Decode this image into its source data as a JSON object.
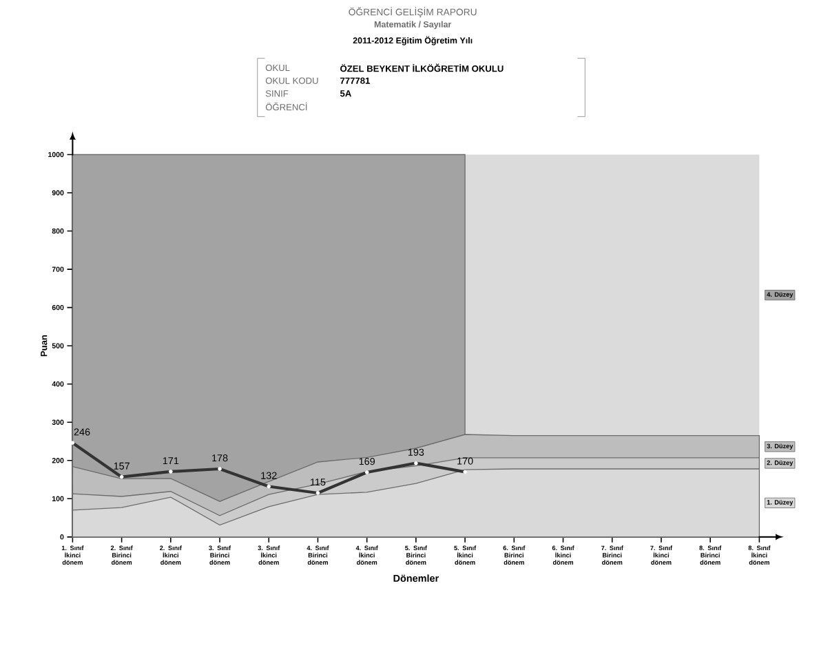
{
  "chart_data": {
    "type": "line",
    "title": "ÖĞRENCİ GELİŞİM RAPORU",
    "subtitle": "Matematik / Sayılar",
    "xlabel": "Dönemler",
    "ylabel": "Puan",
    "annotations": [
      "2011-2012 Eğitim Öğretim Yılı",
      "OKUL",
      "ÖZEL BEYKENT İLKÖĞRETİM OKULU",
      "OKUL KODU",
      "777781",
      "SINIF",
      "5A",
      "ÖĞRENCİ"
    ],
    "categories": [
      "1. Sınıf İkinci dönem",
      "2. Sınıf Birinci dönem",
      "2. Sınıf İkinci dönem",
      "3. Sınıf Birinci dönem",
      "3. Sınıf İkinci dönem",
      "4. Sınıf Birinci dönem",
      "4. Sınıf İkinci dönem",
      "5. Sınıf Birinci dönem",
      "5. Sınıf İkinci dönem",
      "6. Sınıf Birinci dönem",
      "6. Sınıf İkinci dönem",
      "7. Sınıf Birinci dönem",
      "7. Sınıf İkinci dönem",
      "8. Sınıf Birinci dönem",
      "8. Sınıf İkinci dönem"
    ],
    "ylim": [
      0,
      1000
    ],
    "yticks": [
      0,
      100,
      200,
      300,
      400,
      500,
      600,
      700,
      800,
      900,
      1000
    ],
    "legend": "right",
    "series": [
      {
        "name": "4. Düzey",
        "type": "area",
        "color": "#a3a3a3",
        "values": [
          1000,
          1000,
          1000,
          1000,
          1000,
          1000,
          1000,
          1000,
          1000,
          null,
          null,
          null,
          null,
          null,
          null
        ]
      },
      {
        "name": "3. Düzey",
        "type": "area",
        "color": "#bdbdbd",
        "values": [
          184,
          152,
          153,
          93,
          145,
          196,
          208,
          232,
          268,
          265,
          265,
          265,
          265,
          265,
          265
        ]
      },
      {
        "name": "2. Düzey",
        "type": "area",
        "color": "#cbcbcb",
        "values": [
          113,
          106,
          119,
          56,
          111,
          138,
          171,
          186,
          207,
          207,
          207,
          207,
          207,
          207,
          207
        ]
      },
      {
        "name": "1. Düzey",
        "type": "area",
        "color": "#d9d9d9",
        "values": [
          70,
          77,
          104,
          31,
          79,
          111,
          117,
          140,
          176,
          178,
          178,
          178,
          178,
          178,
          178
        ]
      },
      {
        "marker": "circle",
        "color": "#333333",
        "values": [
          246,
          157,
          171,
          178,
          132,
          115,
          169,
          193,
          170,
          null,
          null,
          null,
          null,
          null,
          null
        ],
        "value_labels": [
          "246",
          "157",
          "171",
          "178",
          "132",
          "115",
          "169",
          "193",
          "170",
          null,
          null,
          null,
          null,
          null,
          null
        ]
      }
    ]
  }
}
